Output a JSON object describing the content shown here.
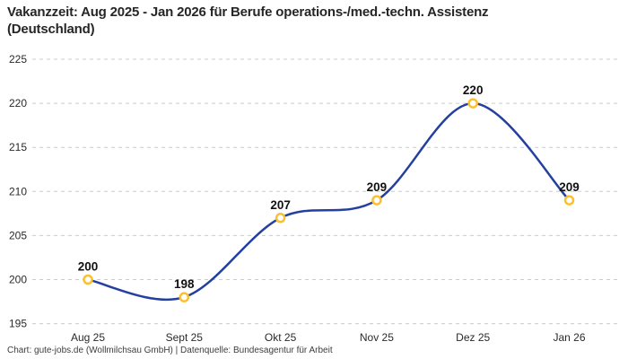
{
  "header": {
    "title_line1": "Vakanzzeit: Aug 2025 - Jan 2026 für Berufe operations-/med.-techn. Assistenz",
    "title_line2": "(Deutschland)"
  },
  "footer": {
    "text": "Chart: gute-jobs.de (Wollmilchsau GmbH) | Datenquelle: Bundesagentur für Arbeit"
  },
  "chart_data": {
    "type": "line",
    "title": "Vakanzzeit: Aug 2025 - Jan 2026 für Berufe operations-/med.-techn. Assistenz (Deutschland)",
    "categories": [
      "Aug 25",
      "Sept 25",
      "Okt 25",
      "Nov 25",
      "Dez 25",
      "Jan 26"
    ],
    "values": [
      200,
      198,
      207,
      209,
      220,
      209
    ],
    "xlabel": "",
    "ylabel": "",
    "ylim": [
      195,
      225
    ],
    "yticks": [
      195,
      200,
      205,
      210,
      215,
      220,
      225
    ],
    "grid": "horizontal dashed",
    "legend": "none",
    "curve": "smooth",
    "colors": {
      "line": "#24409f",
      "marker_ring": "#fcc02e",
      "marker_fill": "#ffffff",
      "gridline": "#cccccc",
      "tick_label": "#2a2a2a",
      "point_label": "#111111",
      "title": "#262626",
      "footer": "#3d3d3d",
      "background": "#ffffff"
    }
  }
}
